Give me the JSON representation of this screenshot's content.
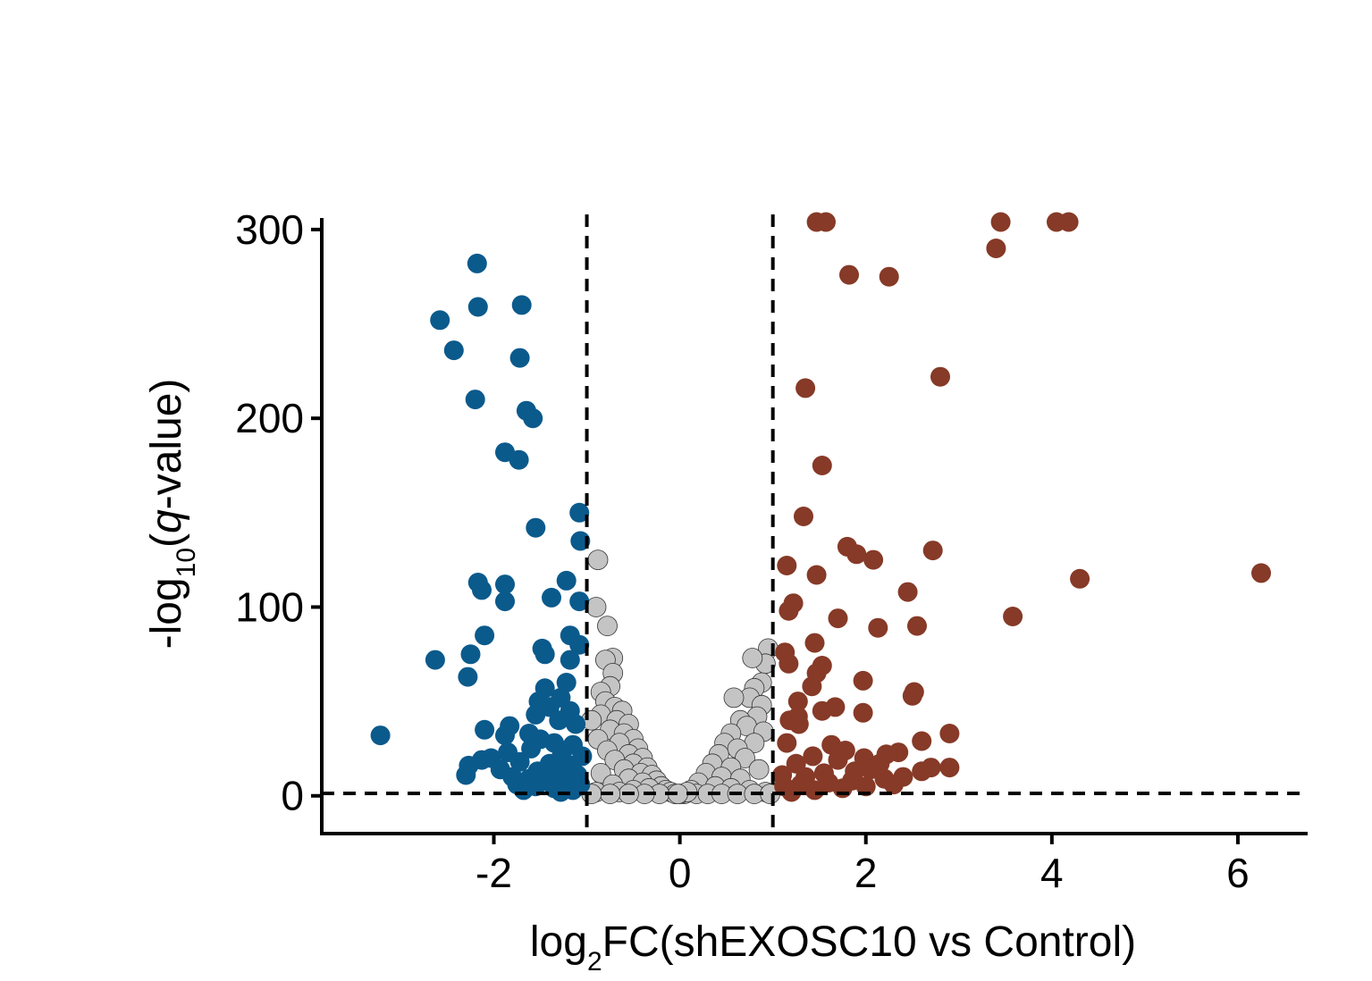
{
  "chart_data": {
    "type": "scatter",
    "title": "",
    "xlabel": {
      "prefix": "log",
      "subscript": "2",
      "suffix": "FC(shEXOSC10 vs Control)"
    },
    "ylabel": {
      "prefix": "-log",
      "subscript": "10",
      "open": "(",
      "italic": "q",
      "suffix": "-value)"
    },
    "xlim": [
      -3.85,
      6.75
    ],
    "ylim": [
      -20,
      308
    ],
    "xticks": [
      -2,
      0,
      2,
      4,
      6
    ],
    "xtick_labels": [
      "-2",
      "0",
      "2",
      "4",
      "6"
    ],
    "yticks": [
      0,
      100,
      200,
      300
    ],
    "ytick_labels": [
      "0",
      "100",
      "200",
      "300"
    ],
    "thresholds": {
      "log2fc": [
        -1,
        1
      ],
      "neglog10q": 1.3
    },
    "colors": {
      "down": "#0b5a8c",
      "up": "#863a27",
      "ns": "#c4c4c4",
      "ns_stroke": "#333333"
    },
    "series": [
      {
        "key": "down",
        "points": [
          [
            -2.18,
            282
          ],
          [
            -2.17,
            259
          ],
          [
            -1.7,
            260
          ],
          [
            -2.58,
            252
          ],
          [
            -2.43,
            236
          ],
          [
            -1.72,
            232
          ],
          [
            -2.2,
            210
          ],
          [
            -1.65,
            204
          ],
          [
            -1.58,
            200
          ],
          [
            -1.88,
            182
          ],
          [
            -1.73,
            178
          ],
          [
            -1.55,
            142
          ],
          [
            -1.08,
            150
          ],
          [
            -1.07,
            135
          ],
          [
            -2.17,
            113
          ],
          [
            -2.13,
            109
          ],
          [
            -1.88,
            112
          ],
          [
            -1.88,
            103
          ],
          [
            -1.22,
            114
          ],
          [
            -1.38,
            105
          ],
          [
            -1.08,
            103
          ],
          [
            -2.1,
            85
          ],
          [
            -1.18,
            85
          ],
          [
            -1.08,
            80
          ],
          [
            -1.48,
            78
          ],
          [
            -1.45,
            75
          ],
          [
            -2.63,
            72
          ],
          [
            -2.25,
            75
          ],
          [
            -1.18,
            72
          ],
          [
            -2.28,
            63
          ],
          [
            -1.22,
            60
          ],
          [
            -1.45,
            57
          ],
          [
            -1.28,
            52
          ],
          [
            -1.52,
            50
          ],
          [
            -1.4,
            47
          ],
          [
            -1.18,
            45
          ],
          [
            -1.55,
            43
          ],
          [
            -1.3,
            40
          ],
          [
            -1.12,
            38
          ],
          [
            -1.83,
            37
          ],
          [
            -2.1,
            35
          ],
          [
            -1.62,
            33
          ],
          [
            -1.5,
            30
          ],
          [
            -1.88,
            32
          ],
          [
            -1.35,
            28
          ],
          [
            -1.15,
            27
          ],
          [
            -3.22,
            32
          ],
          [
            -1.85,
            23
          ],
          [
            -1.6,
            25
          ],
          [
            -1.27,
            22
          ],
          [
            -1.05,
            21
          ],
          [
            -2.03,
            20
          ],
          [
            -2.13,
            19
          ],
          [
            -1.72,
            18
          ],
          [
            -1.4,
            17
          ],
          [
            -1.16,
            16
          ],
          [
            -2.27,
            16
          ],
          [
            -1.93,
            14
          ],
          [
            -1.53,
            13
          ],
          [
            -1.3,
            12
          ],
          [
            -1.1,
            11
          ],
          [
            -2.3,
            11
          ],
          [
            -1.8,
            10
          ],
          [
            -1.62,
            9
          ],
          [
            -1.43,
            8
          ],
          [
            -1.22,
            7
          ],
          [
            -1.07,
            6
          ],
          [
            -1.75,
            6
          ],
          [
            -1.55,
            5
          ],
          [
            -1.35,
            4
          ],
          [
            -1.15,
            3
          ],
          [
            -1.68,
            3
          ],
          [
            -1.28,
            2
          ]
        ]
      },
      {
        "key": "up",
        "points": [
          [
            1.47,
            304
          ],
          [
            1.57,
            304
          ],
          [
            3.45,
            304
          ],
          [
            4.05,
            304
          ],
          [
            4.18,
            304
          ],
          [
            3.4,
            290
          ],
          [
            1.82,
            276
          ],
          [
            2.25,
            275
          ],
          [
            2.8,
            222
          ],
          [
            1.35,
            216
          ],
          [
            1.53,
            175
          ],
          [
            1.33,
            148
          ],
          [
            1.8,
            132
          ],
          [
            1.9,
            128
          ],
          [
            2.08,
            125
          ],
          [
            2.72,
            130
          ],
          [
            1.15,
            122
          ],
          [
            1.47,
            117
          ],
          [
            4.3,
            115
          ],
          [
            6.25,
            118
          ],
          [
            2.45,
            108
          ],
          [
            1.22,
            102
          ],
          [
            1.17,
            98
          ],
          [
            1.7,
            94
          ],
          [
            3.58,
            95
          ],
          [
            2.13,
            89
          ],
          [
            2.55,
            90
          ],
          [
            1.45,
            81
          ],
          [
            1.13,
            76
          ],
          [
            1.17,
            70
          ],
          [
            1.53,
            69
          ],
          [
            1.47,
            65
          ],
          [
            1.42,
            58
          ],
          [
            1.97,
            61
          ],
          [
            2.52,
            55
          ],
          [
            2.5,
            53
          ],
          [
            1.27,
            50
          ],
          [
            1.67,
            47
          ],
          [
            1.53,
            45
          ],
          [
            1.97,
            44
          ],
          [
            1.27,
            42
          ],
          [
            1.18,
            40
          ],
          [
            1.28,
            38
          ],
          [
            2.9,
            33
          ],
          [
            2.6,
            29
          ],
          [
            1.63,
            27
          ],
          [
            1.78,
            24
          ],
          [
            1.15,
            28
          ],
          [
            1.43,
            21
          ],
          [
            2.35,
            23
          ],
          [
            2.22,
            22
          ],
          [
            1.98,
            20
          ],
          [
            1.7,
            19
          ],
          [
            1.25,
            17
          ],
          [
            2.9,
            15
          ],
          [
            2.7,
            15
          ],
          [
            2.6,
            13
          ],
          [
            2.15,
            17
          ],
          [
            2.05,
            14
          ],
          [
            1.88,
            13
          ],
          [
            1.55,
            12
          ],
          [
            1.35,
            10
          ],
          [
            1.1,
            11
          ],
          [
            2.4,
            10
          ],
          [
            2.2,
            9
          ],
          [
            1.85,
            8
          ],
          [
            1.6,
            7
          ],
          [
            1.3,
            6
          ],
          [
            1.12,
            5
          ],
          [
            2.0,
            5
          ],
          [
            1.75,
            4
          ],
          [
            1.45,
            3
          ],
          [
            1.2,
            2
          ],
          [
            2.3,
            6
          ]
        ]
      },
      {
        "key": "ns",
        "points": [
          [
            -0.88,
            125
          ],
          [
            -0.9,
            100
          ],
          [
            -0.78,
            90
          ],
          [
            -0.72,
            73
          ],
          [
            -0.8,
            72
          ],
          [
            -0.72,
            65
          ],
          [
            -0.75,
            58
          ],
          [
            -0.85,
            55
          ],
          [
            -0.8,
            50
          ],
          [
            -0.7,
            47
          ],
          [
            -0.62,
            45
          ],
          [
            -0.85,
            43
          ],
          [
            -0.68,
            40
          ],
          [
            -0.55,
            38
          ],
          [
            -0.95,
            40
          ],
          [
            -0.75,
            35
          ],
          [
            -0.6,
            33
          ],
          [
            -0.5,
            30
          ],
          [
            -0.88,
            30
          ],
          [
            -0.65,
            28
          ],
          [
            -0.45,
            25
          ],
          [
            -0.78,
            24
          ],
          [
            -0.55,
            22
          ],
          [
            -0.4,
            20
          ],
          [
            -0.7,
            19
          ],
          [
            -0.5,
            17
          ],
          [
            -0.35,
            15
          ],
          [
            -0.6,
            14
          ],
          [
            -0.42,
            12
          ],
          [
            -0.3,
            11
          ],
          [
            -0.85,
            12
          ],
          [
            -0.55,
            9
          ],
          [
            -0.25,
            8
          ],
          [
            -0.4,
            7
          ],
          [
            -0.72,
            6
          ],
          [
            -0.2,
            5
          ],
          [
            -0.33,
            4
          ],
          [
            -0.5,
            3
          ],
          [
            -0.65,
            2
          ],
          [
            -0.9,
            2
          ],
          [
            -0.15,
            3
          ],
          [
            -0.1,
            2
          ],
          [
            -0.05,
            1
          ],
          [
            -0.22,
            1
          ],
          [
            -0.38,
            1
          ],
          [
            -0.55,
            1
          ],
          [
            -0.75,
            1
          ],
          [
            -0.95,
            1
          ],
          [
            0.95,
            78
          ],
          [
            0.92,
            70
          ],
          [
            0.78,
            73
          ],
          [
            0.88,
            60
          ],
          [
            0.8,
            57
          ],
          [
            0.75,
            52
          ],
          [
            0.58,
            52
          ],
          [
            0.88,
            48
          ],
          [
            0.83,
            42
          ],
          [
            0.65,
            40
          ],
          [
            0.72,
            37
          ],
          [
            0.9,
            34
          ],
          [
            0.55,
            33
          ],
          [
            0.48,
            28
          ],
          [
            0.8,
            28
          ],
          [
            0.62,
            25
          ],
          [
            0.42,
            22
          ],
          [
            0.7,
            20
          ],
          [
            0.35,
            17
          ],
          [
            0.55,
            15
          ],
          [
            0.85,
            14
          ],
          [
            0.28,
            12
          ],
          [
            0.45,
            10
          ],
          [
            0.65,
            9
          ],
          [
            0.2,
            7
          ],
          [
            0.38,
            5
          ],
          [
            0.55,
            4
          ],
          [
            0.75,
            3
          ],
          [
            0.92,
            2
          ],
          [
            0.12,
            3
          ],
          [
            0.05,
            1
          ],
          [
            0.18,
            1
          ],
          [
            0.3,
            1
          ],
          [
            0.45,
            1
          ],
          [
            0.62,
            1
          ],
          [
            0.8,
            1
          ],
          [
            0.97,
            1
          ],
          [
            0.0,
            1
          ],
          [
            0.08,
            2
          ],
          [
            -0.02,
            1
          ]
        ]
      }
    ],
    "legend": "none",
    "grid": false
  }
}
